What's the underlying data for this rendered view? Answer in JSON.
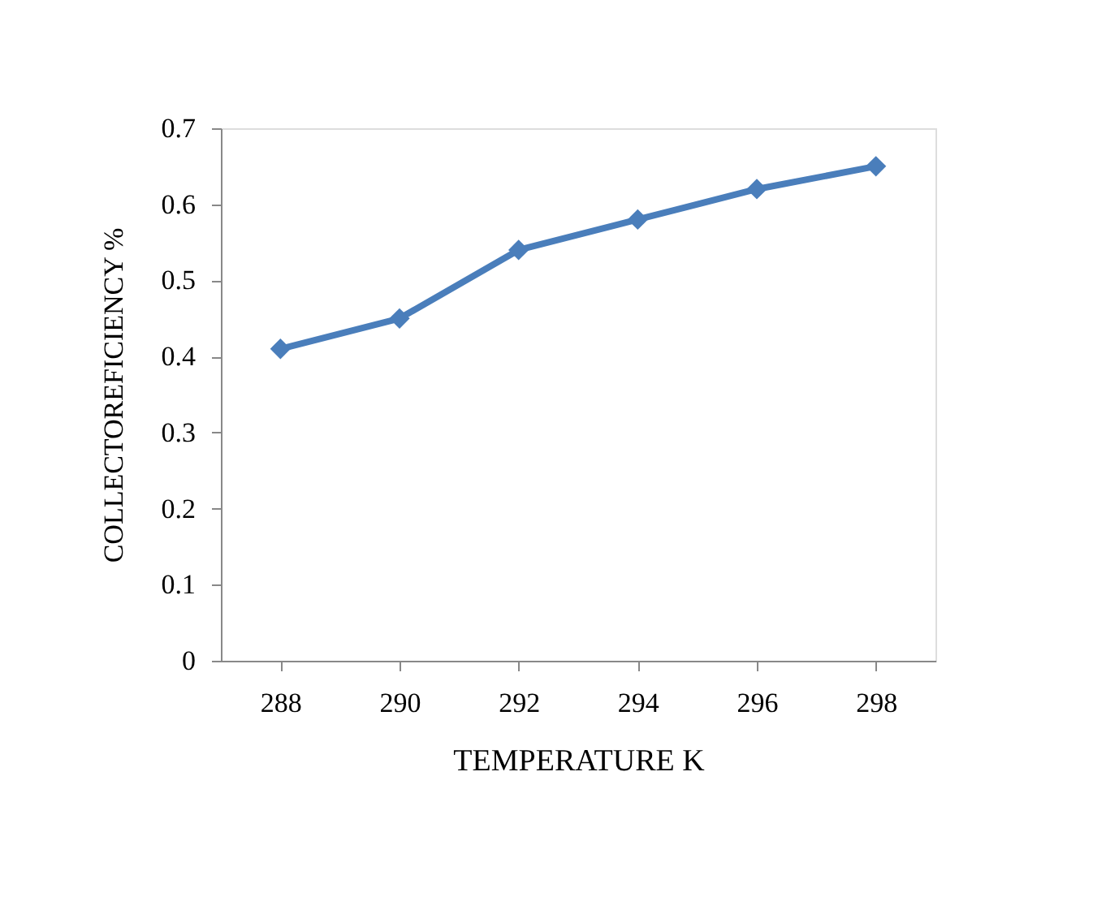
{
  "chart_data": {
    "type": "line",
    "xlabel": "TEMPERATURE K",
    "ylabel": "COLLECTOREFICIENCY  %",
    "categories": [
      "288",
      "290",
      "292",
      "294",
      "296",
      "298"
    ],
    "series": [
      {
        "color": "#4a7ebb",
        "values": [
          0.41,
          0.45,
          0.54,
          0.58,
          0.62,
          0.65
        ]
      }
    ],
    "ylim": [
      0,
      0.7
    ],
    "yticks": [
      0,
      0.1,
      0.2,
      0.3,
      0.4,
      0.5,
      0.6,
      0.7
    ],
    "grid": false,
    "marker": "diamond",
    "line_style": "solid"
  }
}
